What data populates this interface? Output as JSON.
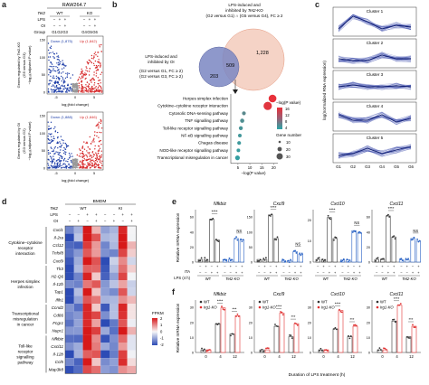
{
  "panels": {
    "a": {
      "label": "a",
      "cell_line": "RAW264.7",
      "rows": {
        "tet2": "Tet2",
        "lps": "LPS",
        "oi": "OI",
        "group": "Group"
      },
      "wt": "WT",
      "ko": "KO",
      "signs": {
        "lps": [
          "−",
          "+",
          "+",
          "−",
          "+",
          "+"
        ],
        "oi": [
          "−",
          "−",
          "+",
          "−",
          "−",
          "+"
        ]
      },
      "groups": [
        "G1",
        "G2",
        "G3",
        "G4",
        "G5",
        "G6"
      ],
      "vol1": {
        "down": "Down (1,875)",
        "up": "Up (1,842)",
        "ylab1": "Genes regulated by Tet2-KO",
        "ylab2": "(G5 versus G3)",
        "ylab3": "−log₁₀(adjusted P value)"
      },
      "vol2": {
        "down": "Down (1,888)",
        "up": "Up (1,846)",
        "ylab1": "Genes regulated by OI",
        "ylab2": "(G3 versus G2)",
        "ylab3": "−log₁₀(adjusted P value)"
      },
      "xlab": "log₂(fold change)",
      "xticks": [
        "-5",
        "0",
        "5"
      ],
      "yticks": [
        "0",
        "50",
        "100",
        "150"
      ]
    },
    "b": {
      "label": "b",
      "venn_top": "LPS-induced and inhibited by Tet2-KO (G2 versus G1) ∩ (G5 versus G4), FC ≥ 2",
      "venn_left": "LPS-induced and inhibited by OI (G2 versus G1, FC ≥ 2) (G2 versus G3, FC ≥ 2)",
      "n_left": "203",
      "n_mid": "509",
      "n_right": "1,228",
      "pathways": [
        "Herpes simplex infection",
        "Cytokine–cytokine receptor interaction",
        "Cytosolic DNA-sensing pathway",
        "TNF signalling pathway",
        "Toll-like receptor signalling pathway",
        "NF-κB signalling pathway",
        "Chagas disease",
        "NOD-like receptor signalling pathway",
        "Transcriptional misregulation in cancer"
      ],
      "neglogp": [
        19.5,
        17.5,
        7.5,
        6.8,
        6.2,
        5.8,
        5.5,
        5.2,
        4.8
      ],
      "genenum": [
        30,
        32,
        10,
        12,
        11,
        9,
        10,
        9,
        14
      ],
      "xlab": "−log(P value)",
      "xticks": [
        "5",
        "10",
        "15",
        "20"
      ],
      "leg_title": "−log(P value)",
      "leg_vals": [
        "16",
        "12",
        "8",
        "4"
      ],
      "size_title": "Gene number",
      "size_vals": [
        "10",
        "20",
        "30"
      ]
    },
    "c": {
      "label": "c",
      "clusters": [
        "Cluster 1",
        "Cluster 2",
        "Cluster 3",
        "Cluster 4",
        "Cluster 5"
      ],
      "ylab": "log(normalized RNA expression)",
      "groups": [
        "G1",
        "G2",
        "G3",
        "G4",
        "G5",
        "G6"
      ]
    },
    "d": {
      "label": "d",
      "title": "BMDM",
      "tet2": "Tet2",
      "lps": "LPS",
      "oi": "OI",
      "wt": "WT",
      "ki": "KI",
      "genes": [
        "Cxcl1",
        "Il-2ra",
        "Ccl12",
        "Tnfsf8",
        "Cxcl9",
        "Tlr3",
        "H2-Q6",
        "Il-12b",
        "Tap1",
        "Ifih1",
        "Ccnd2",
        "Cd86",
        "Fcgr1",
        "Nupr1",
        "Nfkbiz",
        "Cxcl11",
        "Il-12b",
        "Ccl5",
        "Map3k8"
      ],
      "categories": [
        "Cytokine–cytokine receptor interaction",
        "Herpes simplex infection",
        "Transcriptional misregulation in cancer",
        "Toll-like receptor signalling pathway"
      ],
      "scale_title": "FPKM",
      "scale": [
        "2",
        "1",
        "0",
        "-1",
        "-2"
      ]
    },
    "e": {
      "label": "e",
      "ylab": "Relative mRNA expression",
      "genes": [
        "Nfkbiz",
        "Cxcl9",
        "Cxcl10",
        "Cxcl11"
      ],
      "yticks": [
        [
          "0",
          "20",
          "40",
          "60"
        ],
        [
          "0",
          "50",
          "100",
          "150"
        ],
        [
          "0",
          "10",
          "20"
        ],
        [
          "0",
          "20",
          "40",
          "60"
        ]
      ],
      "sig": "****",
      "ns": "NS",
      "ita": "ITA",
      "lps": "LPS (4 h)",
      "wt": "WT",
      "ko": "Tet2-KO"
    },
    "f": {
      "label": "f",
      "ylab": "Relative mRNA expression",
      "genes": [
        "Nfkbiz",
        "Cxcl9",
        "Cxcl10",
        "Cxcl11"
      ],
      "legend": [
        "WT",
        "Irg1-KO"
      ],
      "xticks": [
        "0",
        "4",
        "12"
      ],
      "xlab": "Duration of LPS treatment (h)",
      "sig1": "****",
      "sig2": "***",
      "sig3": "**"
    }
  }
}
